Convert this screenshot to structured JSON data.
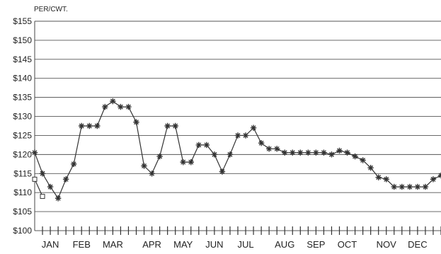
{
  "chart_data": {
    "type": "line",
    "title": "",
    "ylabel": "PER/CWT.",
    "xlabel": "",
    "ylim": [
      100,
      155
    ],
    "ytick_values": [
      100,
      105,
      110,
      115,
      120,
      125,
      130,
      135,
      140,
      145,
      150,
      155
    ],
    "ytick_labels": [
      "$100",
      "$105",
      "$110",
      "$115",
      "$120",
      "$125",
      "$130",
      "$135",
      "$140",
      "$145",
      "$150",
      "$155"
    ],
    "x_ticks_count": 52,
    "month_labels": [
      {
        "label": "JAN",
        "week": 2
      },
      {
        "label": "FEB",
        "week": 6
      },
      {
        "label": "MAR",
        "week": 10
      },
      {
        "label": "APR",
        "week": 15
      },
      {
        "label": "MAY",
        "week": 19
      },
      {
        "label": "JUN",
        "week": 23
      },
      {
        "label": "JUL",
        "week": 27
      },
      {
        "label": "AUG",
        "week": 32
      },
      {
        "label": "SEP",
        "week": 36
      },
      {
        "label": "OCT",
        "week": 40
      },
      {
        "label": "NOV",
        "week": 45
      },
      {
        "label": "DEC",
        "week": 49
      }
    ],
    "grid": true,
    "legend": "none",
    "series": [
      {
        "marker": "star",
        "color": "#333333",
        "x": [
          0,
          1,
          2,
          3,
          4,
          5,
          6,
          7,
          8,
          9,
          10,
          11,
          12,
          13,
          14,
          15,
          16,
          17,
          18,
          19,
          20,
          21,
          22,
          23,
          24,
          25,
          26,
          27,
          28,
          29,
          30,
          31,
          32,
          33,
          34,
          35,
          36,
          37,
          38,
          39,
          40,
          41,
          42,
          43,
          44,
          45,
          46,
          47,
          48,
          49,
          50,
          51,
          52
        ],
        "values": [
          120.5,
          115,
          111.5,
          108.5,
          113.5,
          117.5,
          127.5,
          127.5,
          127.5,
          132.5,
          134,
          132.5,
          132.5,
          128.5,
          117,
          115,
          119.5,
          127.5,
          127.5,
          118,
          118,
          122.5,
          122.5,
          120,
          115.5,
          120,
          125,
          125,
          127,
          123,
          121.5,
          121.5,
          120.5,
          120.5,
          120.5,
          120.5,
          120.5,
          120.5,
          120,
          121,
          120.5,
          119.5,
          118.5,
          116.5,
          114,
          113.5,
          111.5,
          111.5,
          111.5,
          111.5,
          111.5,
          113.5,
          114.5
        ]
      },
      {
        "marker": "square",
        "color": "#333333",
        "x": [
          0,
          1
        ],
        "values": [
          113.5,
          109
        ]
      }
    ]
  }
}
